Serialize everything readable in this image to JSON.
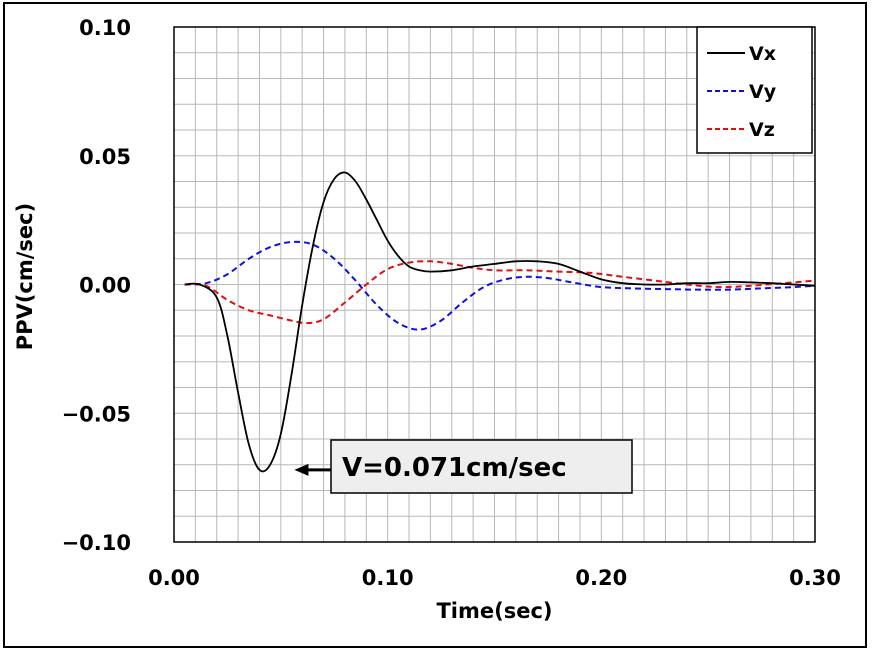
{
  "chart_data": {
    "type": "line",
    "title": "",
    "xlabel": "Time(sec)",
    "ylabel": "PPV(cm/sec)",
    "xlim": [
      0.0,
      0.3
    ],
    "ylim": [
      -0.1,
      0.1
    ],
    "grid": true,
    "legend_position": "top-right",
    "x_ticks": [
      {
        "value": 0.0,
        "label": "0.00"
      },
      {
        "value": 0.1,
        "label": "0.10"
      },
      {
        "value": 0.2,
        "label": "0.20"
      },
      {
        "value": 0.3,
        "label": "0.30"
      }
    ],
    "y_ticks": [
      {
        "value": 0.1,
        "label": "0.10"
      },
      {
        "value": 0.05,
        "label": "0.05"
      },
      {
        "value": 0.0,
        "label": "0.00"
      },
      {
        "value": -0.05,
        "label": "−0.05"
      },
      {
        "value": -0.1,
        "label": "−0.10"
      }
    ],
    "series": [
      {
        "name": "Vx",
        "color": "#000000",
        "dash": "solid",
        "x": [
          0.005,
          0.012,
          0.02,
          0.025,
          0.03,
          0.035,
          0.04,
          0.045,
          0.05,
          0.055,
          0.06,
          0.065,
          0.07,
          0.075,
          0.08,
          0.085,
          0.09,
          0.095,
          0.1,
          0.105,
          0.11,
          0.115,
          0.12,
          0.13,
          0.14,
          0.15,
          0.16,
          0.17,
          0.18,
          0.19,
          0.2,
          0.21,
          0.22,
          0.23,
          0.24,
          0.25,
          0.26,
          0.27,
          0.28,
          0.29,
          0.3
        ],
        "y": [
          0.0,
          0.0,
          -0.005,
          -0.02,
          -0.042,
          -0.062,
          -0.072,
          -0.07,
          -0.058,
          -0.035,
          -0.008,
          0.015,
          0.032,
          0.041,
          0.0435,
          0.04,
          0.033,
          0.025,
          0.017,
          0.011,
          0.007,
          0.0055,
          0.005,
          0.0055,
          0.007,
          0.008,
          0.009,
          0.009,
          0.008,
          0.005,
          0.002,
          0.0005,
          0.0,
          0.0,
          0.0005,
          0.0005,
          0.001,
          0.0008,
          0.0005,
          0.0,
          -0.0005
        ]
      },
      {
        "name": "Vy",
        "color": "#1010e0",
        "dash": "6,4",
        "x": [
          0.005,
          0.015,
          0.025,
          0.035,
          0.045,
          0.055,
          0.065,
          0.075,
          0.085,
          0.095,
          0.105,
          0.115,
          0.125,
          0.135,
          0.145,
          0.155,
          0.165,
          0.175,
          0.185,
          0.2,
          0.215,
          0.23,
          0.245,
          0.26,
          0.275,
          0.29,
          0.3
        ],
        "y": [
          0.0,
          0.0005,
          0.004,
          0.01,
          0.0145,
          0.0165,
          0.0155,
          0.01,
          0.0015,
          -0.008,
          -0.015,
          -0.0175,
          -0.014,
          -0.007,
          -0.001,
          0.002,
          0.003,
          0.0025,
          0.001,
          -0.001,
          -0.0015,
          -0.0018,
          -0.002,
          -0.002,
          -0.0015,
          -0.001,
          -0.0005
        ]
      },
      {
        "name": "Vz",
        "color": "#e01010",
        "dash": "6,4",
        "x": [
          0.005,
          0.015,
          0.025,
          0.035,
          0.045,
          0.055,
          0.062,
          0.07,
          0.08,
          0.09,
          0.1,
          0.11,
          0.12,
          0.13,
          0.14,
          0.15,
          0.165,
          0.18,
          0.195,
          0.21,
          0.225,
          0.24,
          0.255,
          0.27,
          0.285,
          0.3
        ],
        "y": [
          0.0,
          -0.0005,
          -0.006,
          -0.01,
          -0.012,
          -0.014,
          -0.015,
          -0.0135,
          -0.007,
          0.0,
          0.006,
          0.0085,
          0.009,
          0.008,
          0.0065,
          0.0055,
          0.0055,
          0.005,
          0.0045,
          0.003,
          0.0015,
          0.0,
          -0.001,
          -0.0005,
          0.0005,
          0.0015
        ]
      }
    ],
    "annotation": {
      "text": "V=0.071cm/sec",
      "target_x": 0.047,
      "target_y": -0.072
    }
  }
}
